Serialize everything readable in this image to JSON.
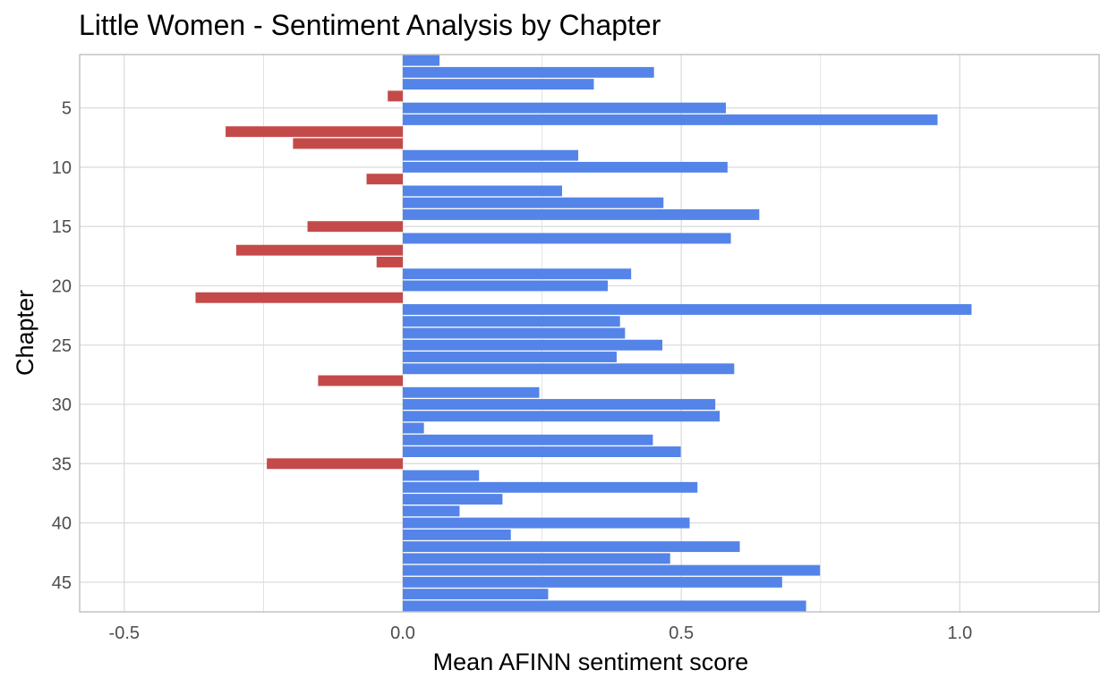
{
  "chart_data": {
    "type": "bar",
    "orientation": "horizontal",
    "title": "Little Women - Sentiment Analysis by Chapter",
    "xlabel": "Mean AFINN sentiment score",
    "ylabel": "Chapter",
    "xlim": [
      -0.58,
      1.25
    ],
    "ylim": [
      0.5,
      47.5
    ],
    "x_ticks": [
      -0.5,
      0.0,
      0.5,
      1.0
    ],
    "x_tick_labels": [
      "-0.5",
      "0.0",
      "0.5",
      "1.0"
    ],
    "y_ticks": [
      5,
      10,
      15,
      20,
      25,
      30,
      35,
      40,
      45
    ],
    "y_tick_labels": [
      "5",
      "10",
      "15",
      "20",
      "25",
      "30",
      "35",
      "40",
      "45"
    ],
    "grid": true,
    "colors": {
      "positive": "#5484e8",
      "negative": "#c44a4a",
      "grid": "#dcdcdc",
      "border": "#b3b3b3"
    },
    "categories": [
      1,
      2,
      3,
      4,
      5,
      6,
      7,
      8,
      9,
      10,
      11,
      12,
      13,
      14,
      15,
      16,
      17,
      18,
      19,
      20,
      21,
      22,
      23,
      24,
      25,
      26,
      27,
      28,
      29,
      30,
      31,
      32,
      33,
      34,
      35,
      36,
      37,
      38,
      39,
      40,
      41,
      42,
      43,
      44,
      45,
      46,
      47
    ],
    "values": [
      0.066,
      0.451,
      0.343,
      -0.027,
      0.58,
      0.96,
      -0.318,
      -0.197,
      0.315,
      0.583,
      -0.065,
      0.286,
      0.468,
      0.64,
      -0.171,
      0.589,
      -0.299,
      -0.047,
      0.41,
      0.368,
      -0.372,
      1.021,
      0.39,
      0.399,
      0.466,
      0.384,
      0.595,
      -0.152,
      0.245,
      0.561,
      0.569,
      0.038,
      0.449,
      0.499,
      -0.244,
      0.137,
      0.529,
      0.179,
      0.102,
      0.515,
      0.194,
      0.605,
      0.48,
      0.749,
      0.681,
      0.261,
      0.724
    ]
  }
}
